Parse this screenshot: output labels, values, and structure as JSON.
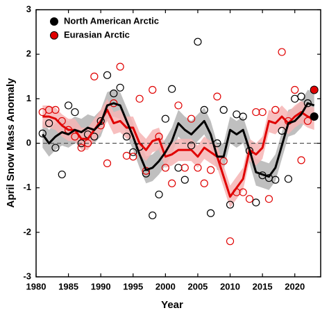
{
  "chart_data": {
    "type": "scatter-smooth",
    "xlabel": "Year",
    "ylabel": "April Snow Mass Anomaly",
    "xlim": [
      1980,
      2024
    ],
    "xticks": [
      1980,
      1985,
      1990,
      1995,
      2000,
      2005,
      2010,
      2015,
      2020
    ],
    "ylim": [
      -3,
      3
    ],
    "yticks": [
      -3,
      -2,
      -1,
      0,
      1,
      2,
      3
    ],
    "zero_line": true,
    "last_point_filled": true,
    "legend": "upper-left",
    "x": [
      1981,
      1982,
      1983,
      1984,
      1985,
      1986,
      1987,
      1988,
      1989,
      1990,
      1991,
      1992,
      1993,
      1994,
      1995,
      1996,
      1997,
      1998,
      1999,
      2000,
      2001,
      2002,
      2003,
      2004,
      2005,
      2006,
      2007,
      2008,
      2009,
      2010,
      2011,
      2012,
      2013,
      2014,
      2015,
      2016,
      2017,
      2018,
      2019,
      2020,
      2021,
      2022,
      2023
    ],
    "series": [
      {
        "name": "North American Arctic",
        "color": "#000000",
        "band_color": "#b4b4b4",
        "band": 0.3,
        "values": [
          0.22,
          0.45,
          -0.1,
          -0.7,
          0.85,
          0.7,
          0.0,
          0.2,
          0.15,
          0.5,
          1.53,
          1.12,
          1.25,
          0.15,
          -0.2,
          -0.08,
          -0.68,
          -1.62,
          -1.15,
          0.55,
          1.22,
          -0.55,
          -0.82,
          -0.05,
          2.28,
          0.75,
          -1.57,
          0.0,
          0.75,
          -1.38,
          0.65,
          0.6,
          -0.17,
          -1.33,
          -0.72,
          -0.78,
          -0.82,
          0.28,
          -0.8,
          1.0,
          1.05,
          0.9,
          0.6
        ],
        "smooth": [
          0.2,
          0.0,
          0.15,
          0.25,
          0.2,
          0.3,
          0.25,
          0.35,
          0.3,
          0.45,
          0.85,
          0.9,
          0.85,
          0.5,
          0.15,
          -0.25,
          -0.6,
          -0.55,
          -0.4,
          -0.2,
          0.05,
          0.45,
          0.3,
          0.2,
          0.35,
          0.5,
          0.2,
          -0.3,
          -0.3,
          0.3,
          0.2,
          0.3,
          -0.15,
          -0.65,
          -0.7,
          -0.75,
          -0.55,
          -0.05,
          0.45,
          0.5,
          0.65,
          0.9,
          0.85
        ]
      },
      {
        "name": "Eurasian Arctic",
        "color": "#e00000",
        "band_color": "#f6b4b4",
        "band": 0.25,
        "values": [
          0.7,
          0.75,
          0.75,
          0.5,
          0.3,
          0.15,
          -0.1,
          0.0,
          1.5,
          0.4,
          -0.45,
          0.9,
          1.72,
          -0.28,
          -0.3,
          1.0,
          -0.62,
          1.2,
          0.15,
          -0.55,
          -0.9,
          0.85,
          -0.55,
          0.55,
          -0.55,
          -0.9,
          -0.6,
          1.05,
          -0.4,
          -2.2,
          -1.1,
          -1.1,
          -1.25,
          0.7,
          0.7,
          -1.25,
          0.75,
          2.05,
          0.5,
          1.2,
          -0.38,
          0.5,
          1.2
        ],
        "smooth": [
          0.6,
          0.6,
          0.55,
          0.4,
          0.3,
          0.3,
          0.1,
          0.1,
          0.3,
          0.5,
          0.75,
          0.45,
          0.5,
          0.35,
          0.35,
          0.0,
          -0.15,
          0.05,
          0.1,
          -0.3,
          -0.25,
          -0.15,
          -0.15,
          -0.15,
          -0.3,
          -0.1,
          -0.2,
          -0.3,
          -0.75,
          -1.2,
          -1.0,
          -0.8,
          -0.15,
          -0.25,
          -0.1,
          0.5,
          0.45,
          0.6,
          0.45,
          0.6,
          0.7,
          0.6,
          0.55
        ]
      }
    ]
  }
}
